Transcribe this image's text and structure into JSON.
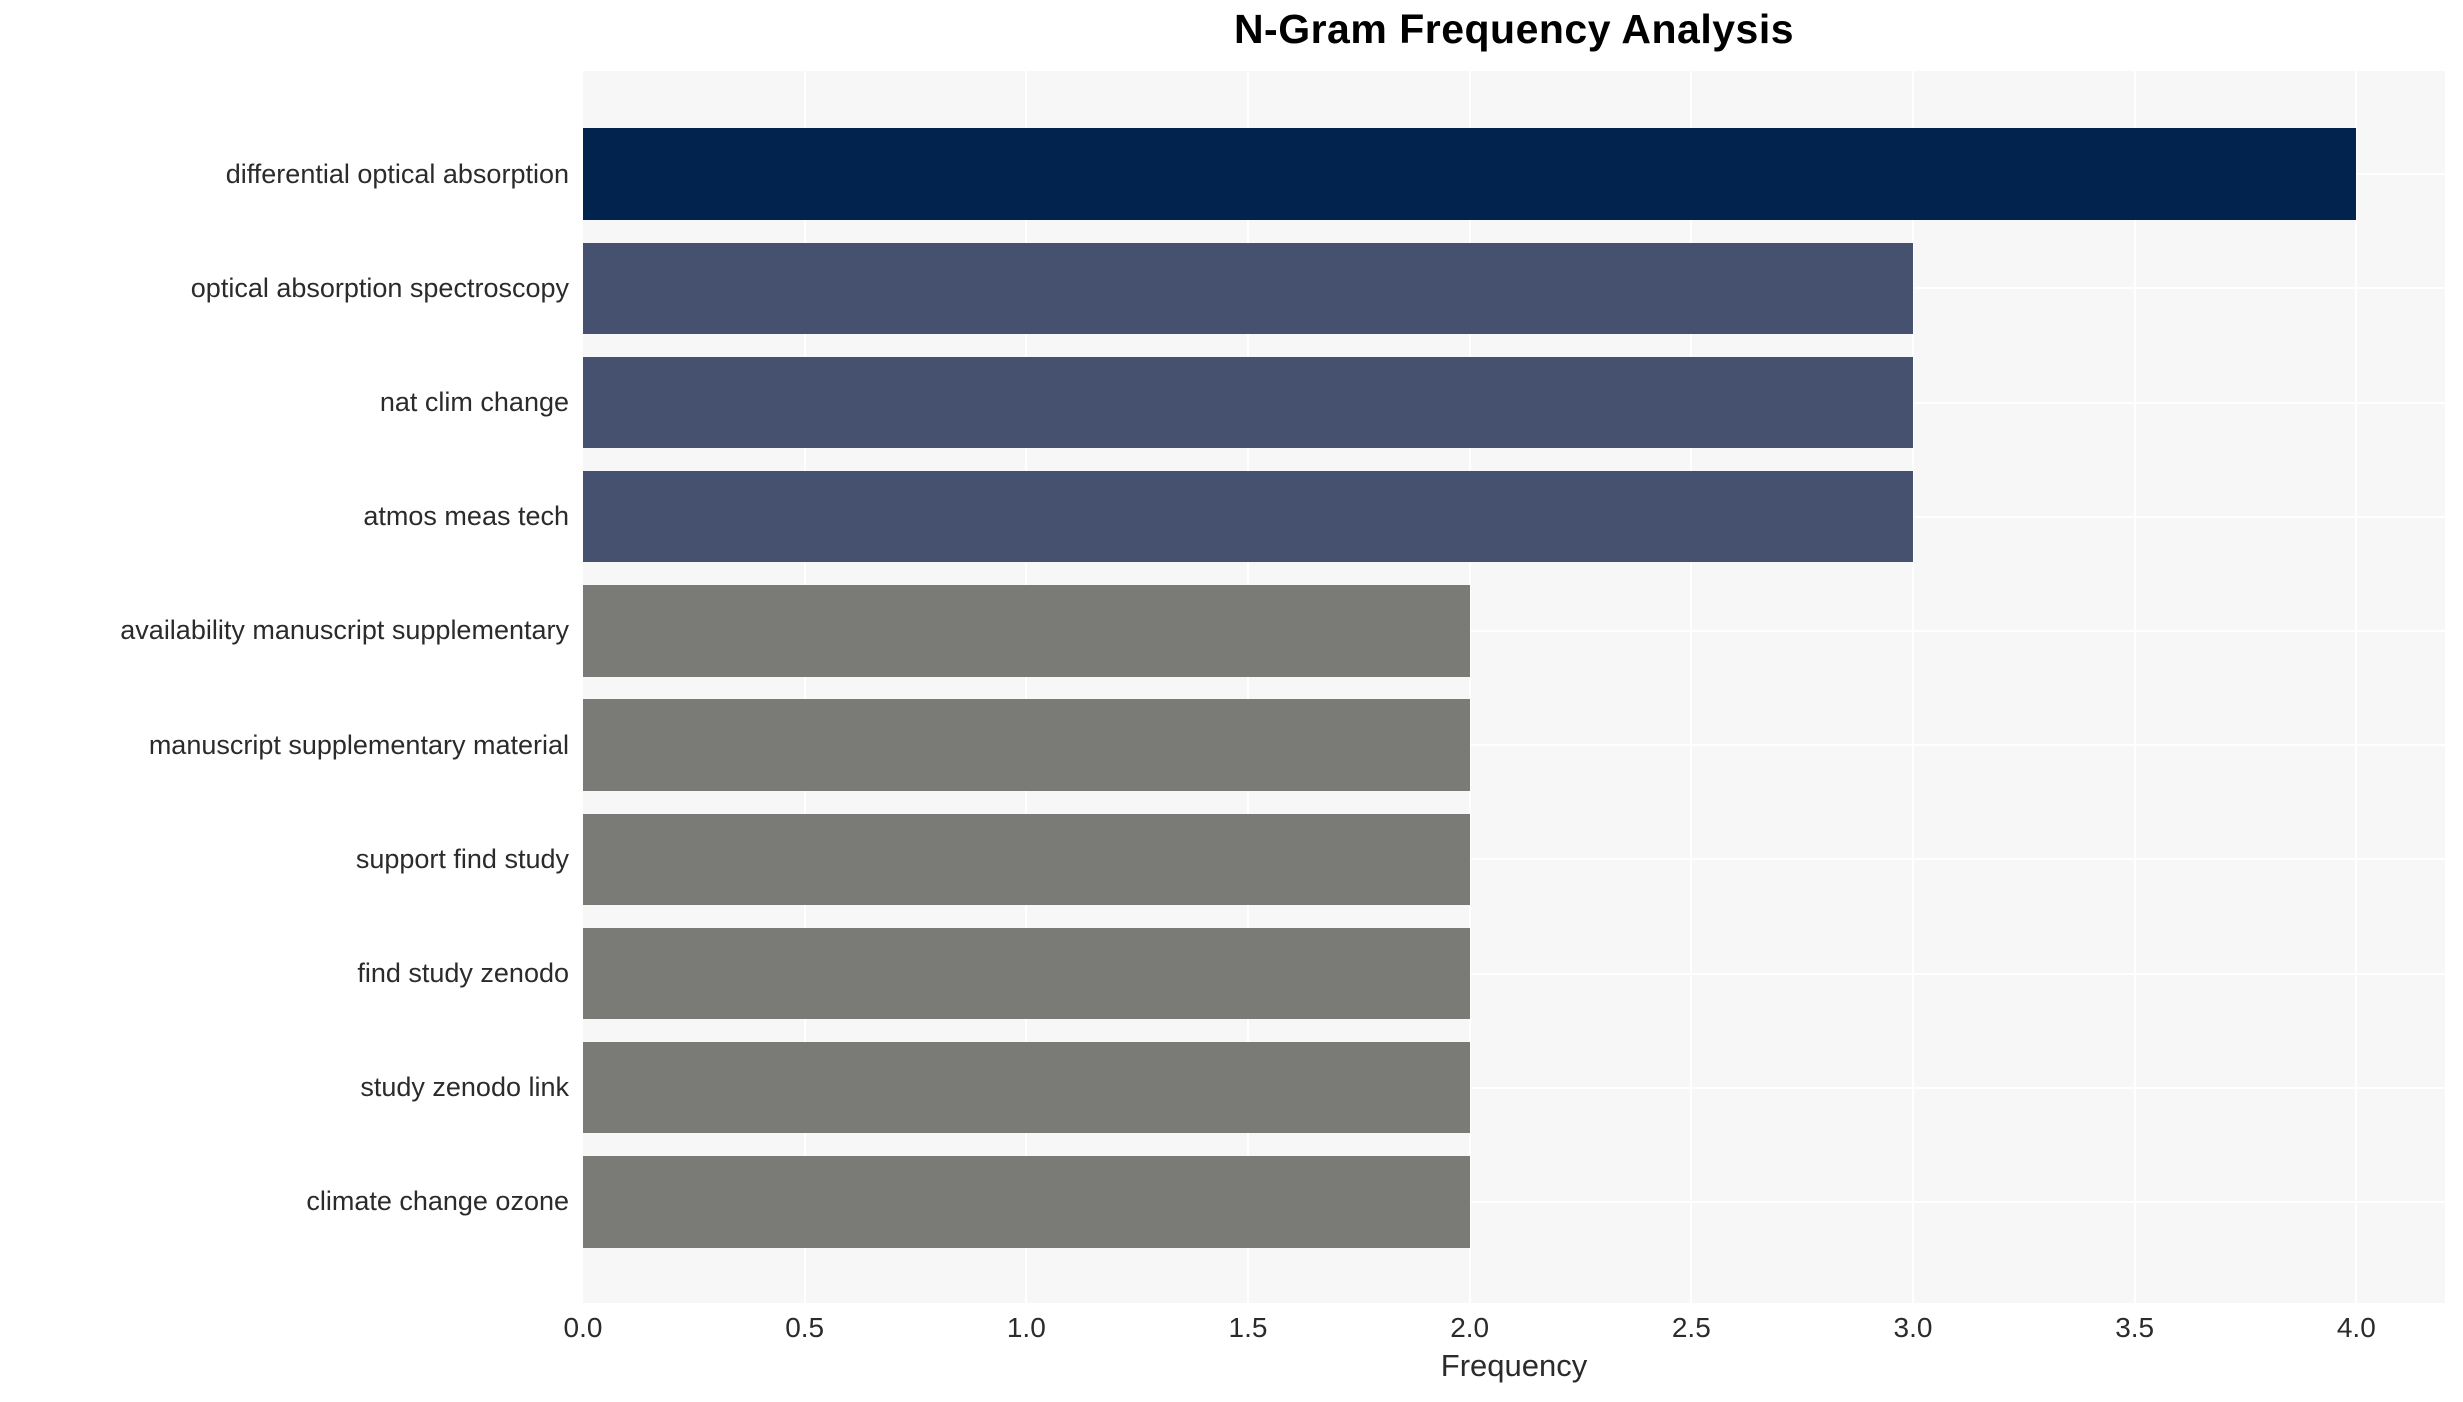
{
  "chart_data": {
    "type": "bar",
    "orientation": "horizontal",
    "title": "N-Gram Frequency Analysis",
    "xlabel": "Frequency",
    "ylabel": "",
    "categories": [
      "differential optical absorption",
      "optical absorption spectroscopy",
      "nat clim change",
      "atmos meas tech",
      "availability manuscript supplementary",
      "manuscript supplementary material",
      "support find study",
      "find study zenodo",
      "study zenodo link",
      "climate change ozone"
    ],
    "values": [
      4,
      3,
      3,
      3,
      2,
      2,
      2,
      2,
      2,
      2
    ],
    "bar_colors": [
      "#02234E",
      "#46506F",
      "#46506F",
      "#46506F",
      "#7A7A77",
      "#7A7A77",
      "#7A7A77",
      "#7A7A77",
      "#7A7A77",
      "#7A7A77"
    ],
    "xlim": [
      0,
      4.2
    ],
    "xticks": [
      0.0,
      0.5,
      1.0,
      1.5,
      2.0,
      2.5,
      3.0,
      3.5,
      4.0
    ],
    "xtick_labels": [
      "0.0",
      "0.5",
      "1.0",
      "1.5",
      "2.0",
      "2.5",
      "3.0",
      "3.5",
      "4.0"
    ],
    "grid": true,
    "legend": "none",
    "plot_bg": "#F7F7F8",
    "grid_color": "#FFFFFF",
    "page_bg": "#FFFFFF"
  }
}
